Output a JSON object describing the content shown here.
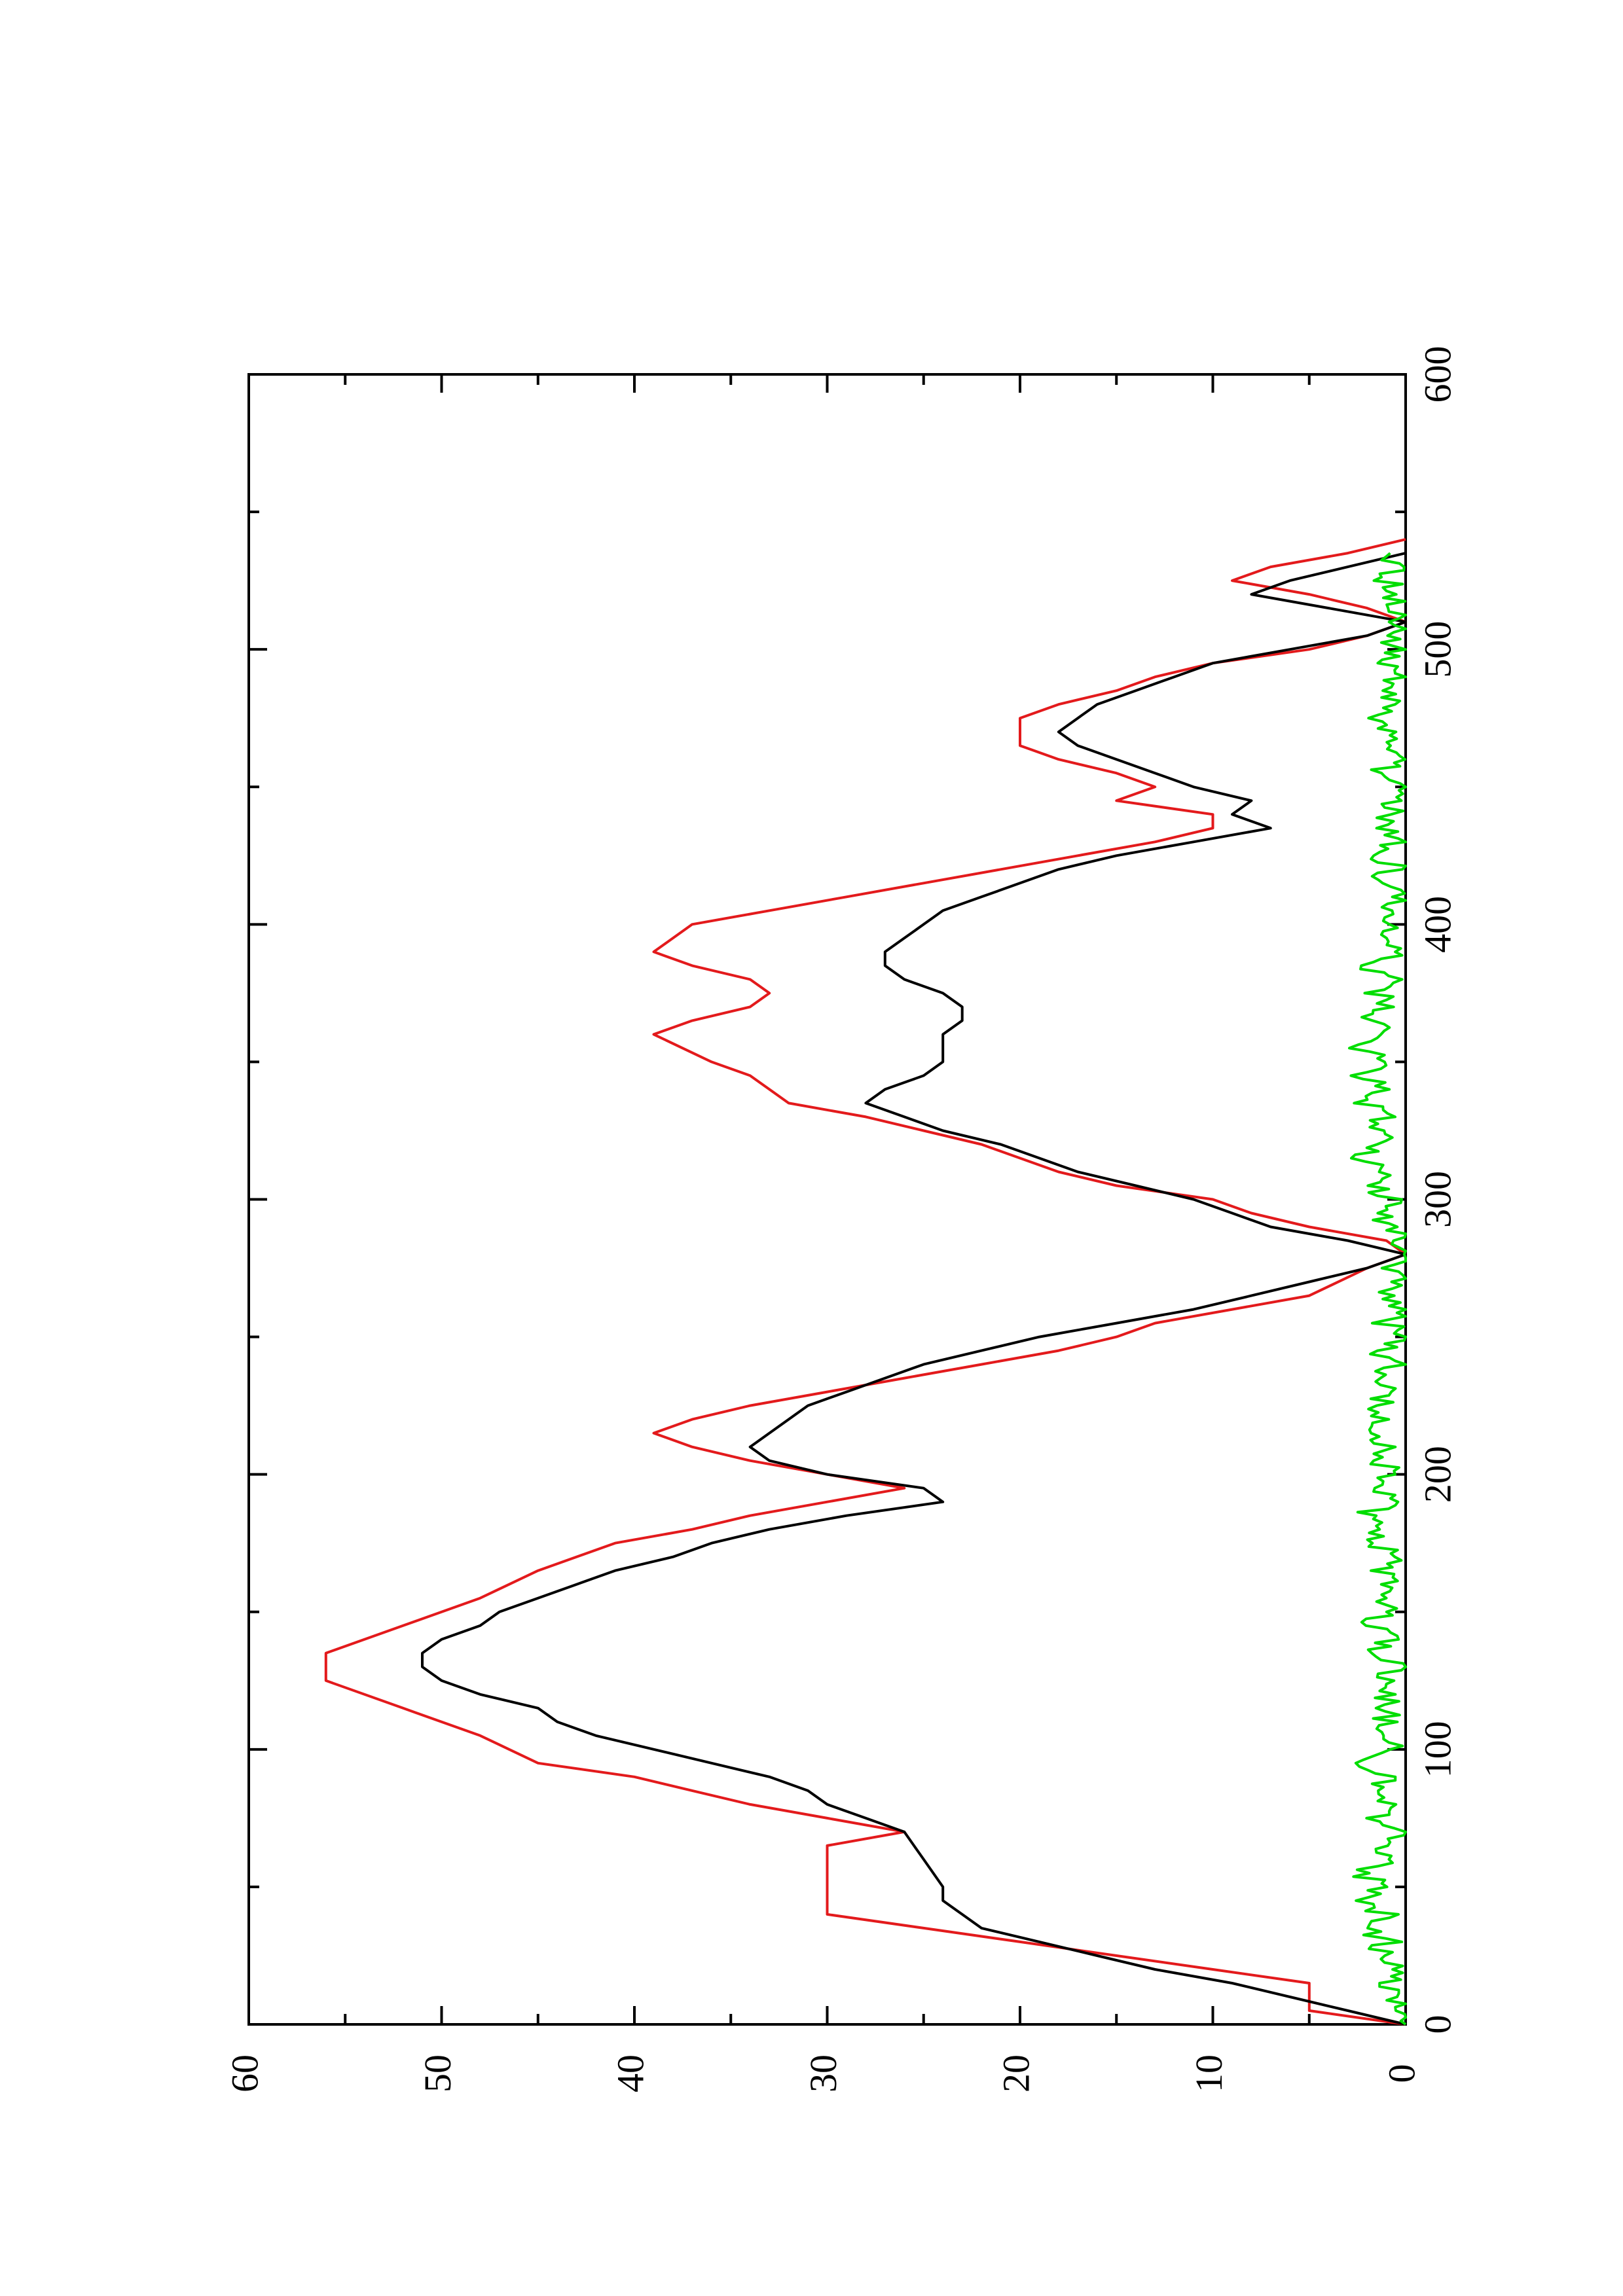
{
  "chart_data": {
    "type": "line",
    "orientation": "rotated-90-counterclockwise",
    "title": "",
    "xlabel": "",
    "ylabel": "",
    "xlim": [
      0,
      600
    ],
    "ylim": [
      0,
      60
    ],
    "x_ticks": [
      0,
      100,
      200,
      300,
      400,
      500,
      600
    ],
    "x_minor_ticks": [
      50,
      150,
      250,
      350,
      450,
      550
    ],
    "y_ticks": [
      0,
      10,
      20,
      30,
      40,
      50,
      60
    ],
    "y_minor_ticks": [
      5,
      15,
      25,
      35,
      45,
      55
    ],
    "x_tick_labels": [
      "0",
      "100",
      "200",
      "300",
      "400",
      "500",
      "600"
    ],
    "y_tick_labels": [
      "0",
      "10",
      "20",
      "30",
      "40",
      "50",
      "60"
    ],
    "grid": false,
    "legend": "none",
    "colors": {
      "black": "#000000",
      "red": "#e31a1c",
      "green": "#00dd00"
    },
    "series": [
      {
        "color": "#e31a1c",
        "style": "step",
        "points": [
          [
            0,
            0
          ],
          [
            5,
            5
          ],
          [
            15,
            5
          ],
          [
            20,
            10
          ],
          [
            25,
            15
          ],
          [
            30,
            20
          ],
          [
            35,
            25
          ],
          [
            40,
            30
          ],
          [
            65,
            30
          ],
          [
            70,
            26
          ],
          [
            75,
            30
          ],
          [
            80,
            34
          ],
          [
            85,
            37
          ],
          [
            90,
            40
          ],
          [
            95,
            45
          ],
          [
            105,
            48
          ],
          [
            115,
            52
          ],
          [
            125,
            56
          ],
          [
            135,
            56
          ],
          [
            145,
            52
          ],
          [
            155,
            48
          ],
          [
            165,
            45
          ],
          [
            175,
            41
          ],
          [
            180,
            37
          ],
          [
            185,
            34
          ],
          [
            190,
            30
          ],
          [
            195,
            26
          ],
          [
            200,
            30
          ],
          [
            205,
            34
          ],
          [
            210,
            37
          ],
          [
            215,
            39
          ],
          [
            220,
            37
          ],
          [
            225,
            34
          ],
          [
            230,
            30
          ],
          [
            235,
            26
          ],
          [
            240,
            22
          ],
          [
            245,
            18
          ],
          [
            250,
            15
          ],
          [
            255,
            13
          ],
          [
            260,
            9
          ],
          [
            265,
            5
          ],
          [
            275,
            2
          ],
          [
            280,
            0
          ],
          [
            285,
            1
          ],
          [
            290,
            5
          ],
          [
            295,
            8
          ],
          [
            300,
            10
          ],
          [
            305,
            15
          ],
          [
            310,
            18
          ],
          [
            315,
            20
          ],
          [
            320,
            22
          ],
          [
            325,
            25
          ],
          [
            330,
            28
          ],
          [
            335,
            32
          ],
          [
            340,
            33
          ],
          [
            345,
            34
          ],
          [
            350,
            36
          ],
          [
            360,
            39
          ],
          [
            365,
            37
          ],
          [
            370,
            34
          ],
          [
            375,
            33
          ],
          [
            380,
            34
          ],
          [
            385,
            37
          ],
          [
            390,
            39
          ],
          [
            400,
            37
          ],
          [
            405,
            33
          ],
          [
            410,
            29
          ],
          [
            415,
            25
          ],
          [
            420,
            21
          ],
          [
            425,
            17
          ],
          [
            430,
            13
          ],
          [
            435,
            10
          ],
          [
            440,
            10
          ],
          [
            445,
            15
          ],
          [
            450,
            13
          ],
          [
            455,
            15
          ],
          [
            460,
            18
          ],
          [
            465,
            20
          ],
          [
            475,
            20
          ],
          [
            480,
            18
          ],
          [
            485,
            15
          ],
          [
            490,
            13
          ],
          [
            495,
            10
          ],
          [
            500,
            5
          ],
          [
            505,
            2
          ],
          [
            510,
            0
          ],
          [
            515,
            2
          ],
          [
            520,
            5
          ],
          [
            525,
            9
          ],
          [
            530,
            7
          ],
          [
            535,
            3
          ],
          [
            540,
            0
          ]
        ]
      },
      {
        "color": "#000000",
        "style": "line",
        "points": [
          [
            0,
            0
          ],
          [
            5,
            3
          ],
          [
            10,
            6
          ],
          [
            15,
            9
          ],
          [
            20,
            13
          ],
          [
            25,
            16
          ],
          [
            30,
            19
          ],
          [
            35,
            22
          ],
          [
            40,
            23
          ],
          [
            45,
            24
          ],
          [
            50,
            24
          ],
          [
            55,
            24.5
          ],
          [
            60,
            25
          ],
          [
            65,
            25.5
          ],
          [
            70,
            26
          ],
          [
            75,
            28
          ],
          [
            80,
            30
          ],
          [
            85,
            31
          ],
          [
            90,
            33
          ],
          [
            95,
            36
          ],
          [
            100,
            39
          ],
          [
            105,
            42
          ],
          [
            110,
            44
          ],
          [
            115,
            45
          ],
          [
            120,
            48
          ],
          [
            125,
            50
          ],
          [
            130,
            51
          ],
          [
            135,
            51
          ],
          [
            140,
            50
          ],
          [
            145,
            48
          ],
          [
            150,
            47
          ],
          [
            155,
            45
          ],
          [
            160,
            43
          ],
          [
            165,
            41
          ],
          [
            170,
            38
          ],
          [
            175,
            36
          ],
          [
            180,
            33
          ],
          [
            185,
            29
          ],
          [
            190,
            24
          ],
          [
            195,
            25
          ],
          [
            200,
            30
          ],
          [
            205,
            33
          ],
          [
            210,
            34
          ],
          [
            215,
            33
          ],
          [
            220,
            32
          ],
          [
            225,
            31
          ],
          [
            230,
            29
          ],
          [
            235,
            27
          ],
          [
            240,
            25
          ],
          [
            245,
            22
          ],
          [
            250,
            19
          ],
          [
            255,
            15
          ],
          [
            260,
            11
          ],
          [
            265,
            8
          ],
          [
            270,
            5
          ],
          [
            275,
            2
          ],
          [
            280,
            0
          ],
          [
            285,
            3
          ],
          [
            290,
            7
          ],
          [
            295,
            9
          ],
          [
            300,
            11
          ],
          [
            305,
            14
          ],
          [
            310,
            17
          ],
          [
            315,
            19
          ],
          [
            320,
            21
          ],
          [
            325,
            24
          ],
          [
            330,
            26
          ],
          [
            335,
            28
          ],
          [
            340,
            27
          ],
          [
            345,
            25
          ],
          [
            350,
            24
          ],
          [
            355,
            24
          ],
          [
            360,
            24
          ],
          [
            365,
            23
          ],
          [
            370,
            23
          ],
          [
            375,
            24
          ],
          [
            380,
            26
          ],
          [
            385,
            27
          ],
          [
            390,
            27
          ],
          [
            395,
            26
          ],
          [
            400,
            25
          ],
          [
            405,
            24
          ],
          [
            410,
            22
          ],
          [
            415,
            20
          ],
          [
            420,
            18
          ],
          [
            425,
            15
          ],
          [
            430,
            11
          ],
          [
            435,
            7
          ],
          [
            440,
            9
          ],
          [
            445,
            8
          ],
          [
            450,
            11
          ],
          [
            455,
            13
          ],
          [
            460,
            15
          ],
          [
            465,
            17
          ],
          [
            470,
            18
          ],
          [
            475,
            17
          ],
          [
            480,
            16
          ],
          [
            485,
            14
          ],
          [
            490,
            12
          ],
          [
            495,
            10
          ],
          [
            500,
            6
          ],
          [
            505,
            2
          ],
          [
            510,
            0
          ],
          [
            515,
            4
          ],
          [
            520,
            8
          ],
          [
            525,
            6
          ],
          [
            530,
            3
          ],
          [
            535,
            0
          ]
        ]
      },
      {
        "color": "#00dd00",
        "style": "line",
        "noise": true,
        "points": [
          [
            0,
            0
          ],
          [
            5,
            0.6
          ],
          [
            10,
            0.3
          ],
          [
            15,
            1.1
          ],
          [
            20,
            0.4
          ],
          [
            25,
            1.6
          ],
          [
            30,
            0.8
          ],
          [
            35,
            2.1
          ],
          [
            40,
            0.9
          ],
          [
            45,
            2.5
          ],
          [
            50,
            1.2
          ],
          [
            55,
            2.3
          ],
          [
            60,
            0.7
          ],
          [
            65,
            1.5
          ],
          [
            70,
            0.5
          ],
          [
            75,
            1.3
          ],
          [
            80,
            0.6
          ],
          [
            85,
            1.8
          ],
          [
            90,
            0.9
          ],
          [
            95,
            1.9
          ],
          [
            100,
            0.7
          ],
          [
            105,
            1.6
          ],
          [
            110,
            0.8
          ],
          [
            115,
            1.4
          ],
          [
            120,
            0.6
          ],
          [
            125,
            1.2
          ],
          [
            130,
            0.4
          ],
          [
            135,
            1.5
          ],
          [
            140,
            0.9
          ],
          [
            145,
            2.0
          ],
          [
            150,
            1.0
          ],
          [
            155,
            1.7
          ],
          [
            160,
            0.8
          ],
          [
            165,
            1.6
          ],
          [
            170,
            0.6
          ],
          [
            175,
            1.8
          ],
          [
            180,
            1.0
          ],
          [
            185,
            2.2
          ],
          [
            190,
            0.9
          ],
          [
            195,
            1.7
          ],
          [
            200,
            0.5
          ],
          [
            205,
            1.4
          ],
          [
            210,
            0.6
          ],
          [
            215,
            1.8
          ],
          [
            220,
            0.8
          ],
          [
            225,
            1.6
          ],
          [
            230,
            0.5
          ],
          [
            235,
            1.3
          ],
          [
            240,
            0.6
          ],
          [
            245,
            1.2
          ],
          [
            250,
            0.4
          ],
          [
            255,
            1.0
          ],
          [
            260,
            0.5
          ],
          [
            265,
            0.9
          ],
          [
            270,
            0.2
          ],
          [
            275,
            0.6
          ],
          [
            280,
            0.1
          ],
          [
            285,
            0.9
          ],
          [
            290,
            0.5
          ],
          [
            295,
            1.6
          ],
          [
            300,
            0.8
          ],
          [
            305,
            1.9
          ],
          [
            310,
            1.0
          ],
          [
            315,
            2.2
          ],
          [
            320,
            1.0
          ],
          [
            325,
            1.7
          ],
          [
            330,
            0.9
          ],
          [
            335,
            2.0
          ],
          [
            340,
            1.2
          ],
          [
            345,
            2.1
          ],
          [
            350,
            1.0
          ],
          [
            355,
            2.4
          ],
          [
            360,
            1.1
          ],
          [
            365,
            1.9
          ],
          [
            370,
            0.7
          ],
          [
            375,
            1.5
          ],
          [
            380,
            0.9
          ],
          [
            385,
            1.8
          ],
          [
            390,
            0.6
          ],
          [
            395,
            1.4
          ],
          [
            400,
            0.7
          ],
          [
            405,
            1.5
          ],
          [
            410,
            0.5
          ],
          [
            415,
            1.3
          ],
          [
            420,
            0.7
          ],
          [
            425,
            1.1
          ],
          [
            430,
            0.5
          ],
          [
            435,
            1.3
          ],
          [
            440,
            0.6
          ],
          [
            445,
            1.0
          ],
          [
            450,
            0.5
          ],
          [
            455,
            1.2
          ],
          [
            460,
            0.7
          ],
          [
            465,
            1.4
          ],
          [
            470,
            0.8
          ],
          [
            475,
            1.3
          ],
          [
            480,
            0.6
          ],
          [
            485,
            1.0
          ],
          [
            490,
            0.4
          ],
          [
            495,
            1.0
          ],
          [
            500,
            0.6
          ],
          [
            505,
            1.1
          ],
          [
            510,
            0.5
          ],
          [
            515,
            1.0
          ],
          [
            520,
            0.6
          ],
          [
            525,
            0.9
          ],
          [
            530,
            0.4
          ],
          [
            535,
            0.8
          ]
        ]
      }
    ]
  }
}
